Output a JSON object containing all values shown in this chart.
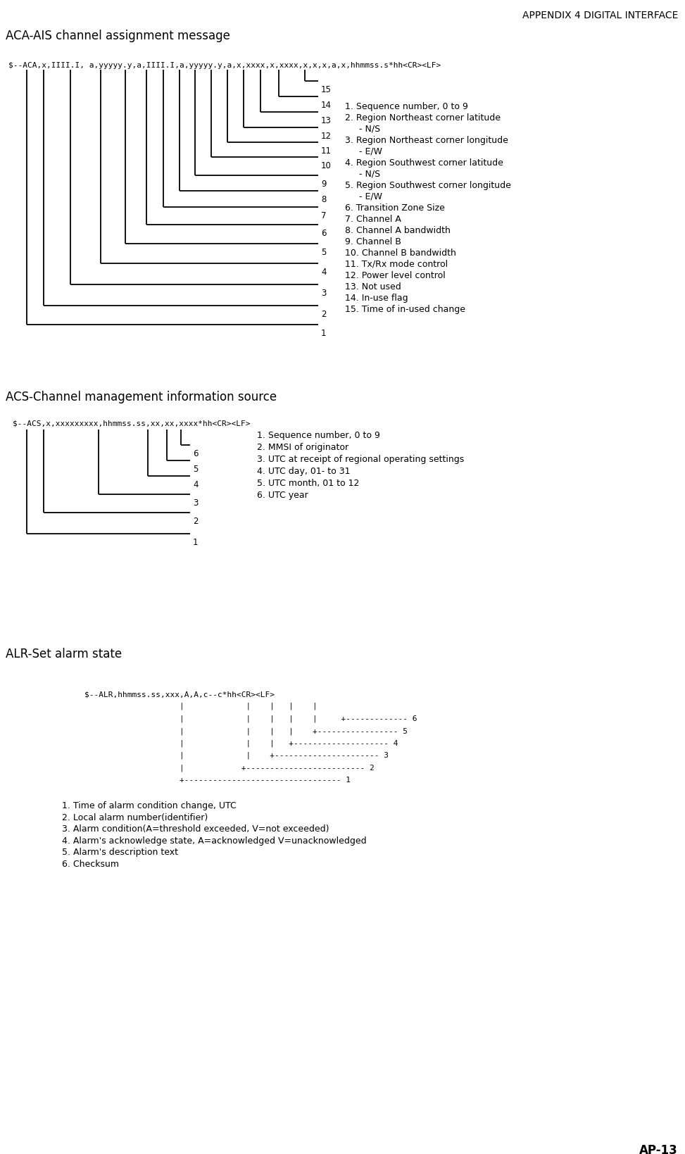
{
  "title": "APPENDIX 4 DIGITAL INTERFACE",
  "page_num": "AP-13",
  "section1_title": "ACA-AIS channel assignment message",
  "section1_sentence": "$--ACA,x,IIII.I, a,yyyyy.y,a,IIII.I,a,yyyyy.y,a,x,xxxx,x,xxxx,x,x,x,a,x,hhmmss.s*hh<CR><LF>",
  "section1_items": [
    "1. Sequence number, 0 to 9",
    "2. Region Northeast corner latitude",
    "     - N/S",
    "3. Region Northeast corner longitude",
    "     - E/W",
    "4. Region Southwest corner latitude",
    "     - N/S",
    "5. Region Southwest corner longitude",
    "     - E/W",
    "6. Transition Zone Size",
    "7. Channel A",
    "8. Channel A bandwidth",
    "9. Channel B",
    "10. Channel B bandwidth",
    "11. Tx/Rx mode control",
    "12. Power level control",
    "13. Not used",
    "14. In-use flag",
    "15. Time of in-used change"
  ],
  "section2_title": "ACS-Channel management information source",
  "section2_sentence": "$--ACS,x,xxxxxxxxx,hhmmss.ss,xx,xx,xxxx*hh<CR><LF>",
  "section2_items": [
    "1. Sequence number, 0 to 9",
    "2. MMSI of originator",
    "3. UTC at receipt of regional operating settings",
    "4. UTC day, 01- to 31",
    "5. UTC month, 01 to 12",
    "6. UTC year"
  ],
  "section3_title": "ALR-Set alarm state",
  "section3_sentence": "$--ALR,hhmmss.ss,xxx,A,A,c--c*hh<CR><LF>",
  "section3_items": [
    "1. Time of alarm condition change, UTC",
    "2. Local alarm number(identifier) ",
    "3. Alarm condition(A=threshold exceeded, V=not exceeded)",
    "4. Alarm's acknowledge state, A=acknowledged V=unacknowledged",
    "5. Alarm's description text",
    "6. Checksum"
  ],
  "alr_diagram_lines": [
    "                    |             |    |   |    |",
    "                    |             |    |   |    |     +------------- 6",
    "                    |             |    |   |    +----------------- 5",
    "                    |             |    |   +-------------------- 4",
    "                    |             |    +---------------------- 3",
    "                    |            +------------------------- 2",
    "                    +--------------------------------- 1"
  ]
}
